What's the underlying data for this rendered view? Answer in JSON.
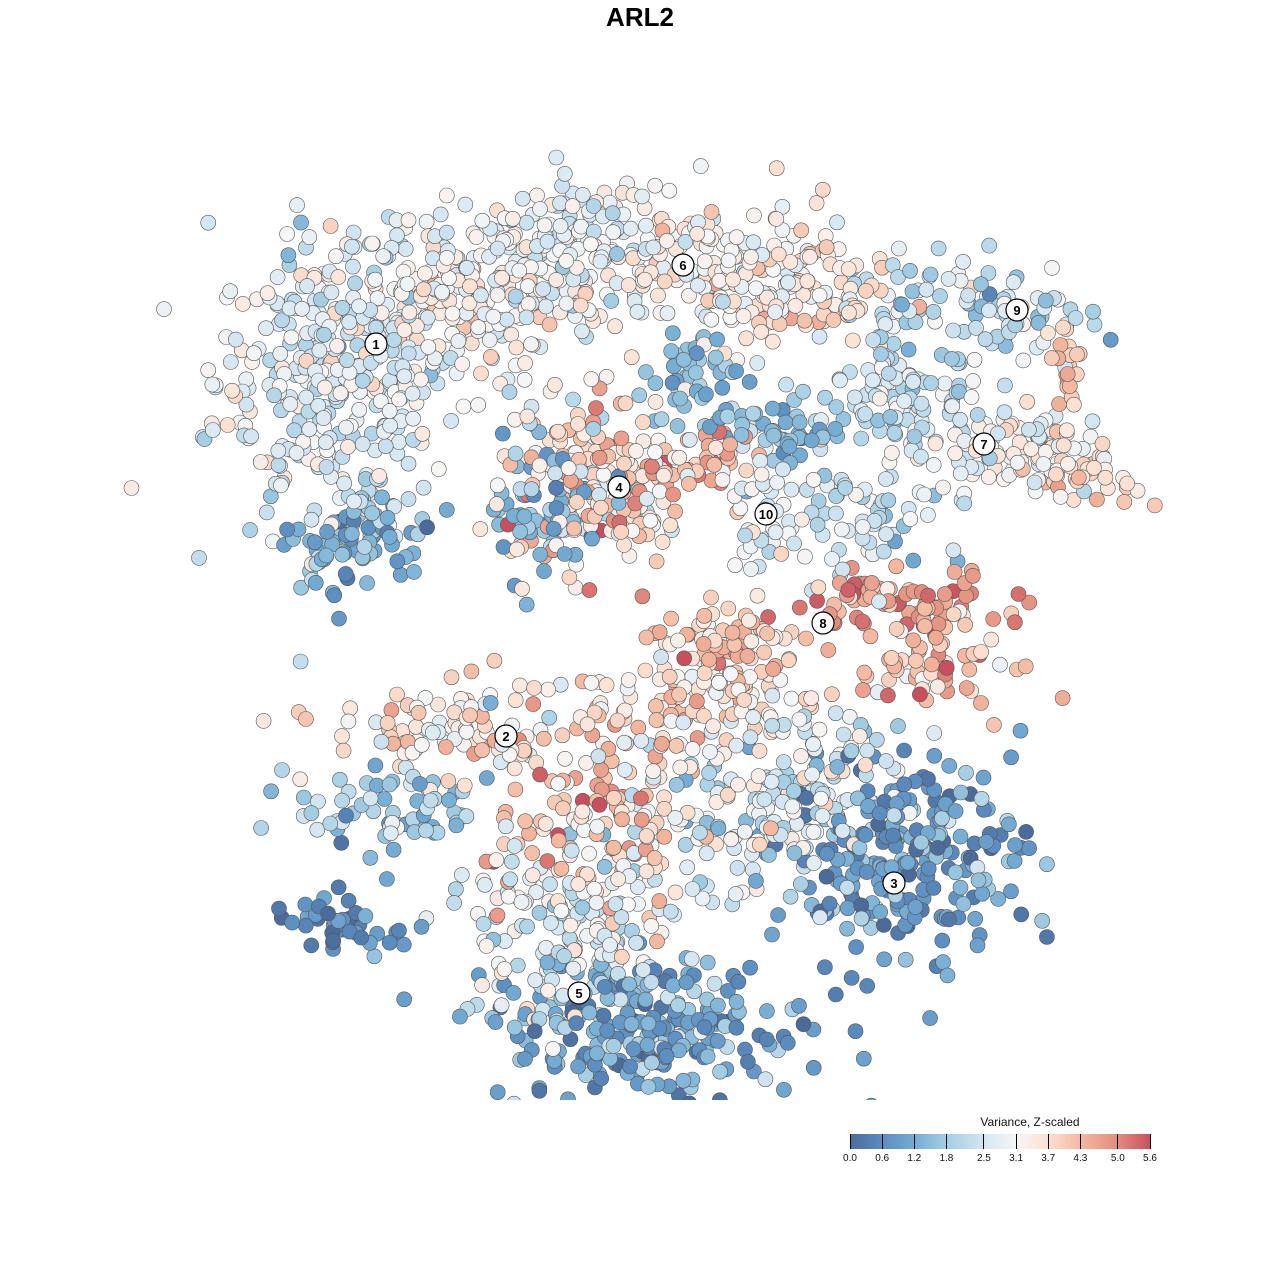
{
  "chart_data": {
    "type": "scatter",
    "title": "ARL2",
    "xlabel": "",
    "ylabel": "",
    "xlim": [
      -47,
      47
    ],
    "ylim": [
      -46,
      46
    ],
    "grid": false,
    "legend": {
      "title": "Variance, Z-scaled",
      "placement": "bottom-right",
      "range": [
        0.0,
        5.6
      ],
      "ticks": [
        "0.0",
        "0.6",
        "1.2",
        "1.8",
        "2.5",
        "3.1",
        "3.7",
        "4.3",
        "5.0",
        "5.6"
      ],
      "tick_values": [
        0.0,
        0.6,
        1.2,
        1.8,
        2.5,
        3.1,
        3.7,
        4.3,
        5.0,
        5.6
      ]
    },
    "color_scale": [
      {
        "v": 0.0,
        "c": "#4b6c9b"
      },
      {
        "v": 0.6,
        "c": "#5b8cc0"
      },
      {
        "v": 1.2,
        "c": "#74acd3"
      },
      {
        "v": 1.8,
        "c": "#a3cde3"
      },
      {
        "v": 2.5,
        "c": "#d4e6f1"
      },
      {
        "v": 3.1,
        "c": "#f6f6f6"
      },
      {
        "v": 3.7,
        "c": "#fbe0d1"
      },
      {
        "v": 4.3,
        "c": "#f3b89f"
      },
      {
        "v": 5.0,
        "c": "#e38c7e"
      },
      {
        "v": 5.6,
        "c": "#c8505e"
      }
    ],
    "note_points": "point clouds approximated per cluster blob: center (x,y), spread (sx,sy), count n, mean value m, value sd s",
    "blobs": [
      {
        "cluster": "1",
        "x": -33.5,
        "y": 25.7,
        "sx": 6,
        "sy": 7,
        "n": 350,
        "m": 2.7,
        "s": 0.5
      },
      {
        "cluster": "1",
        "x": -20.5,
        "y": 34.7,
        "sx": 7,
        "sy": 4,
        "n": 250,
        "m": 3.0,
        "s": 0.5
      },
      {
        "cluster": "1",
        "x": -31.5,
        "y": 9.7,
        "sx": 3.5,
        "sy": 2.5,
        "n": 80,
        "m": 1.2,
        "s": 0.5
      },
      {
        "cluster": "1",
        "x": -8.5,
        "y": 39.7,
        "sx": 5,
        "sy": 3,
        "n": 120,
        "m": 2.8,
        "s": 0.5
      },
      {
        "cluster": "6",
        "x": 5.5,
        "y": 36.7,
        "sx": 6,
        "sy": 3.5,
        "n": 150,
        "m": 3.2,
        "s": 0.5
      },
      {
        "cluster": "6",
        "x": 13.5,
        "y": 33.7,
        "sx": 4,
        "sy": 2.5,
        "n": 80,
        "m": 3.5,
        "s": 0.5
      },
      {
        "cluster": "4",
        "x": -7.5,
        "y": 15.7,
        "sx": 4.5,
        "sy": 4.5,
        "n": 200,
        "m": 3.6,
        "s": 0.9
      },
      {
        "cluster": "4",
        "x": -12.5,
        "y": 12.7,
        "sx": 3,
        "sy": 3.5,
        "n": 60,
        "m": 1.3,
        "s": 0.5
      },
      {
        "cluster": "4",
        "x": 2.5,
        "y": 17.7,
        "sx": 4,
        "sy": 1.5,
        "n": 50,
        "m": 4.2,
        "s": 0.5
      },
      {
        "cluster": "4",
        "x": 2.5,
        "y": 25.7,
        "sx": 2,
        "sy": 2.5,
        "n": 40,
        "m": 1.5,
        "s": 0.5
      },
      {
        "cluster": "7",
        "x": 23.5,
        "y": 23.7,
        "sx": 4,
        "sy": 2,
        "n": 80,
        "m": 2.2,
        "s": 0.5
      },
      {
        "cluster": "7",
        "x": 33.5,
        "y": 18.7,
        "sx": 5,
        "sy": 2.5,
        "n": 100,
        "m": 3.0,
        "s": 0.5
      },
      {
        "cluster": "7",
        "x": 42.5,
        "y": 15.7,
        "sx": 2.5,
        "sy": 1.5,
        "n": 30,
        "m": 3.8,
        "s": 0.4
      },
      {
        "cluster": "7",
        "x": 11.5,
        "y": 20.7,
        "sx": 3.5,
        "sy": 1.5,
        "n": 50,
        "m": 1.6,
        "s": 0.5
      },
      {
        "cluster": "9",
        "x": 29.5,
        "y": 32.7,
        "sx": 6,
        "sy": 2.5,
        "n": 100,
        "m": 2.3,
        "s": 0.6
      },
      {
        "cluster": "9",
        "x": 39.5,
        "y": 27.7,
        "sx": 1,
        "sy": 3,
        "n": 20,
        "m": 4.0,
        "s": 0.3
      },
      {
        "cluster": "10",
        "x": 10.0,
        "y": 12.7,
        "sx": 2,
        "sy": 3,
        "n": 40,
        "m": 2.8,
        "s": 0.5
      },
      {
        "cluster": "10",
        "x": 19.5,
        "y": 11.7,
        "sx": 4,
        "sy": 3,
        "n": 60,
        "m": 2.3,
        "s": 0.5
      },
      {
        "cluster": "8",
        "x": 5.5,
        "y": -1.3,
        "sx": 4,
        "sy": 2,
        "n": 80,
        "m": 4.0,
        "s": 0.5
      },
      {
        "cluster": "8",
        "x": 23.5,
        "y": 3.7,
        "sx": 5,
        "sy": 1.5,
        "n": 70,
        "m": 4.7,
        "s": 0.6
      },
      {
        "cluster": "8",
        "x": 26.5,
        "y": -1.8,
        "sx": 4,
        "sy": 2.5,
        "n": 70,
        "m": 4.2,
        "s": 0.6
      },
      {
        "cluster": "2",
        "x": -22.5,
        "y": -9.3,
        "sx": 6,
        "sy": 2.5,
        "n": 100,
        "m": 3.4,
        "s": 0.6
      },
      {
        "cluster": "2",
        "x": -27.5,
        "y": -17.3,
        "sx": 5,
        "sy": 2.5,
        "n": 70,
        "m": 1.8,
        "s": 0.6
      },
      {
        "cluster": "2",
        "x": -7.5,
        "y": -17.3,
        "sx": 5,
        "sy": 5,
        "n": 140,
        "m": 3.9,
        "s": 0.7
      },
      {
        "cluster": "3",
        "x": 23.5,
        "y": -21.3,
        "sx": 6,
        "sy": 5,
        "n": 250,
        "m": 0.9,
        "s": 0.6
      },
      {
        "cluster": "3",
        "x": 9.5,
        "y": -16.3,
        "sx": 7,
        "sy": 5,
        "n": 200,
        "m": 2.6,
        "s": 0.6
      },
      {
        "cluster": "3",
        "x": 3.5,
        "y": -6.3,
        "sx": 6,
        "sy": 2,
        "n": 80,
        "m": 3.6,
        "s": 0.6
      },
      {
        "cluster": "5",
        "x": -2.5,
        "y": -39.3,
        "sx": 8,
        "sy": 3.5,
        "n": 250,
        "m": 1.1,
        "s": 0.6
      },
      {
        "cluster": "5",
        "x": -10.5,
        "y": -29.3,
        "sx": 6,
        "sy": 4,
        "n": 150,
        "m": 2.6,
        "s": 0.6
      },
      {
        "cluster": "other",
        "x": -32.5,
        "y": -28.3,
        "sx": 3.5,
        "sy": 1.5,
        "n": 40,
        "m": 0.5,
        "s": 0.4
      }
    ],
    "cluster_labels": [
      {
        "label": "1",
        "x": -29.4,
        "y": 29.3
      },
      {
        "label": "2",
        "x": -16.4,
        "y": -9.9
      },
      {
        "label": "3",
        "x": 22.4,
        "y": -24.6
      },
      {
        "label": "4",
        "x": -5.1,
        "y": 15.0
      },
      {
        "label": "5",
        "x": -9.1,
        "y": -35.6
      },
      {
        "label": "6",
        "x": 1.3,
        "y": 37.2
      },
      {
        "label": "7",
        "x": 31.4,
        "y": 19.3
      },
      {
        "label": "8",
        "x": 15.3,
        "y": 1.4
      },
      {
        "label": "9",
        "x": 34.7,
        "y": 32.7
      },
      {
        "label": "10",
        "x": 9.6,
        "y": 12.3
      }
    ]
  }
}
